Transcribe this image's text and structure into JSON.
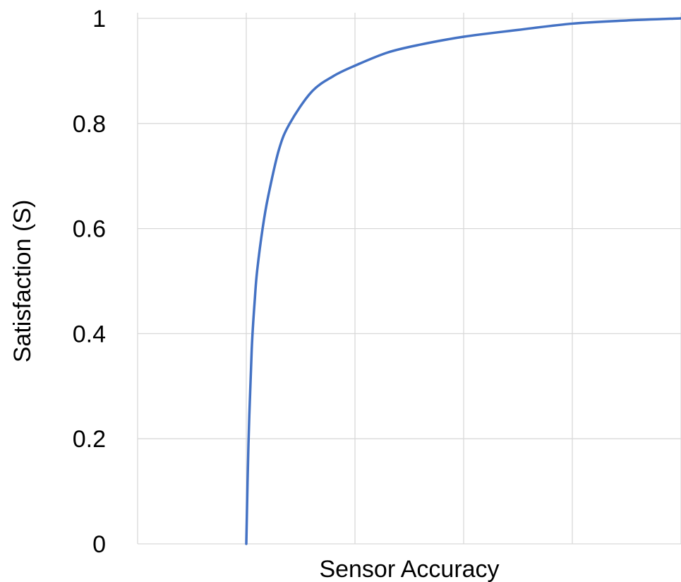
{
  "chart_data": {
    "type": "line",
    "title": "",
    "xlabel": "Sensor Accuracy",
    "ylabel": "Satisfaction (S)",
    "xlim": [
      0,
      5
    ],
    "ylim": [
      0,
      1
    ],
    "y_ticks": [
      "0",
      "0.2",
      "0.4",
      "0.6",
      "0.8",
      "1"
    ],
    "x_ticks": [],
    "grid": true,
    "legend": "none",
    "colors": {
      "series": "#4472C4",
      "grid": "#D9D9D9"
    },
    "series": [
      {
        "x": [
          1.0,
          1.02,
          1.05,
          1.08,
          1.1,
          1.15,
          1.2,
          1.3,
          1.4,
          1.6,
          1.8,
          2.0,
          2.3,
          2.6,
          3.0,
          3.5,
          4.0,
          4.5,
          5.0
        ],
        "values": [
          0.0,
          0.19,
          0.37,
          0.47,
          0.52,
          0.6,
          0.66,
          0.75,
          0.8,
          0.86,
          0.89,
          0.91,
          0.935,
          0.95,
          0.965,
          0.978,
          0.99,
          0.996,
          1.0
        ]
      }
    ]
  }
}
